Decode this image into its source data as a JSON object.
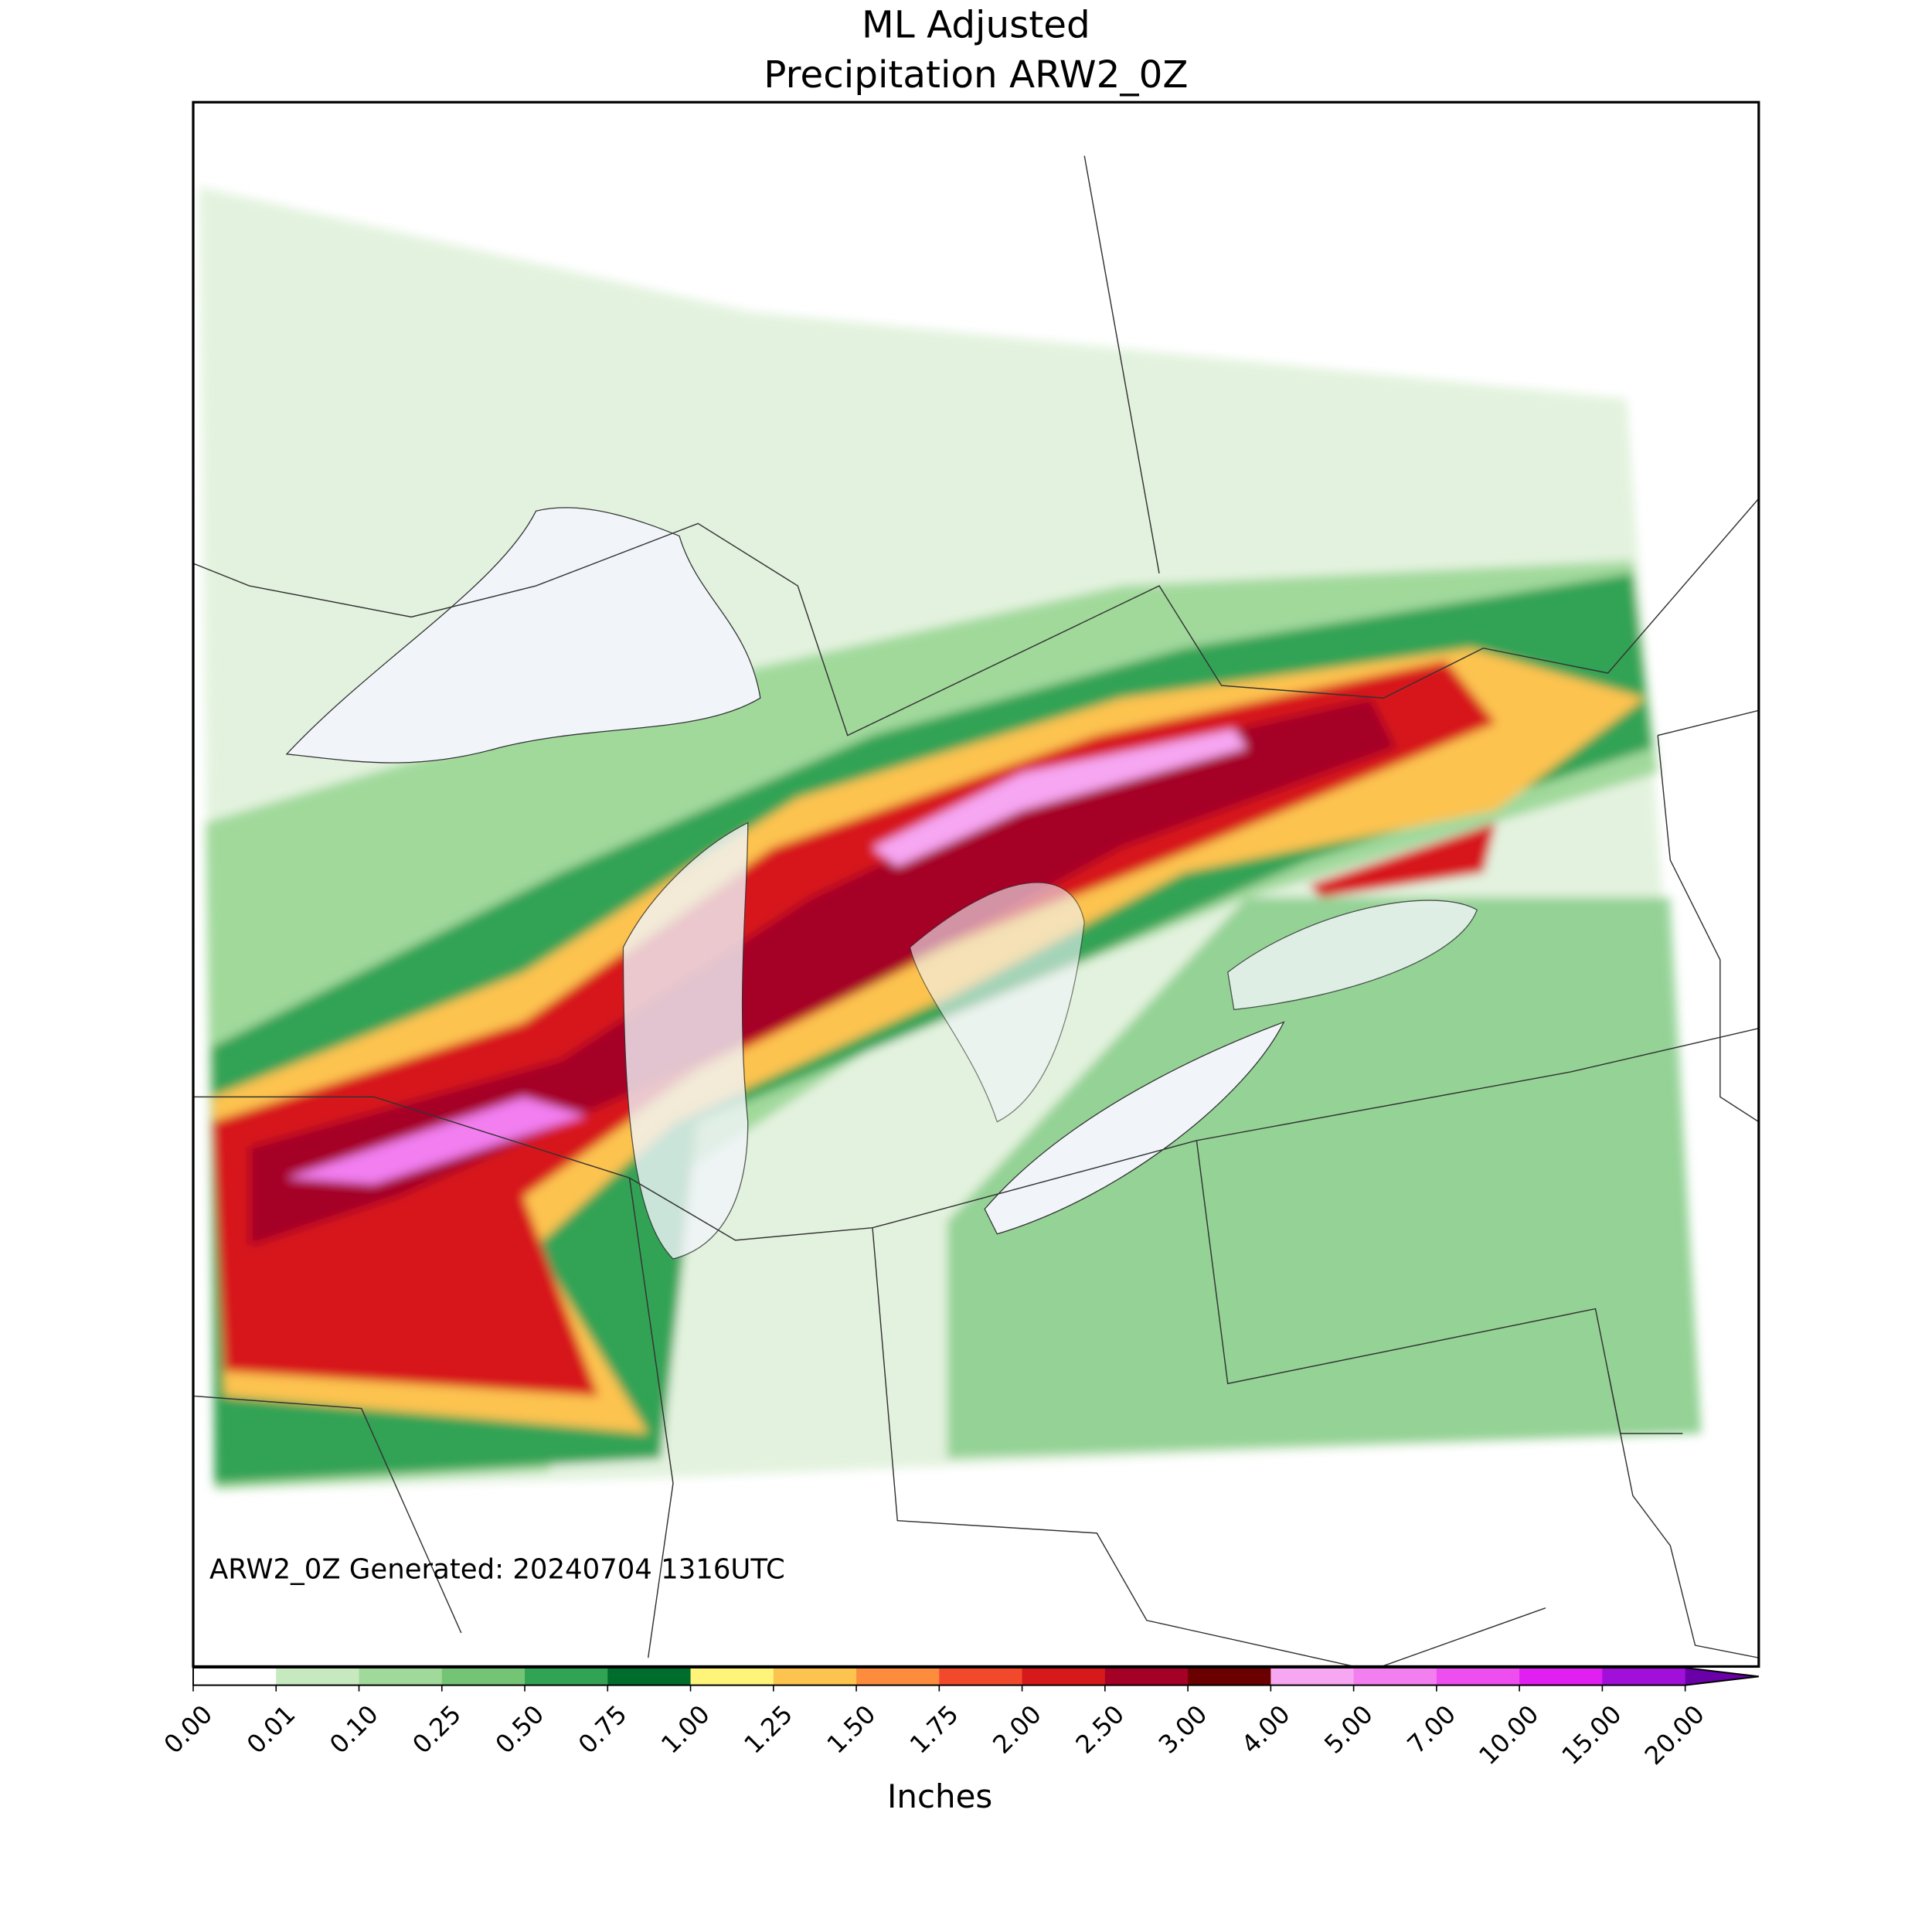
{
  "title": [
    "ML Adjusted",
    "Precipitation ARW2_0Z"
  ],
  "annotation": "ARW2_0Z Generated: 20240704 1316UTC",
  "colorbar": {
    "label": "Inches",
    "extend": "max",
    "ticks": [
      {
        "value": 0,
        "label": "0.00"
      },
      {
        "value": 0.01,
        "label": "0.01"
      },
      {
        "value": 0.1,
        "label": "0.10"
      },
      {
        "value": 0.25,
        "label": "0.25"
      },
      {
        "value": 0.5,
        "label": "0.50"
      },
      {
        "value": 0.75,
        "label": "0.75"
      },
      {
        "value": 1,
        "label": "1.00"
      },
      {
        "value": 1.25,
        "label": "1.25"
      },
      {
        "value": 1.5,
        "label": "1.50"
      },
      {
        "value": 1.75,
        "label": "1.75"
      },
      {
        "value": 2,
        "label": "2.00"
      },
      {
        "value": 2.5,
        "label": "2.50"
      },
      {
        "value": 3,
        "label": "3.00"
      },
      {
        "value": 4,
        "label": "4.00"
      },
      {
        "value": 5,
        "label": "5.00"
      },
      {
        "value": 7,
        "label": "7.00"
      },
      {
        "value": 10,
        "label": "10.00"
      },
      {
        "value": 15,
        "label": "15.00"
      },
      {
        "value": 20,
        "label": "20.00"
      }
    ],
    "colors": [
      "#ffffff",
      "#c7e9c0",
      "#a1d99b",
      "#74c476",
      "#31a354",
      "#006d2c",
      "#fff47a",
      "#fdc34f",
      "#fd8d3c",
      "#f2492d",
      "#d7191c",
      "#a50026",
      "#6b0000",
      "#f7a6f2",
      "#f27ef0",
      "#ee4ef0",
      "#e01ff0",
      "#a010d8",
      "#6a00a8"
    ]
  }
}
